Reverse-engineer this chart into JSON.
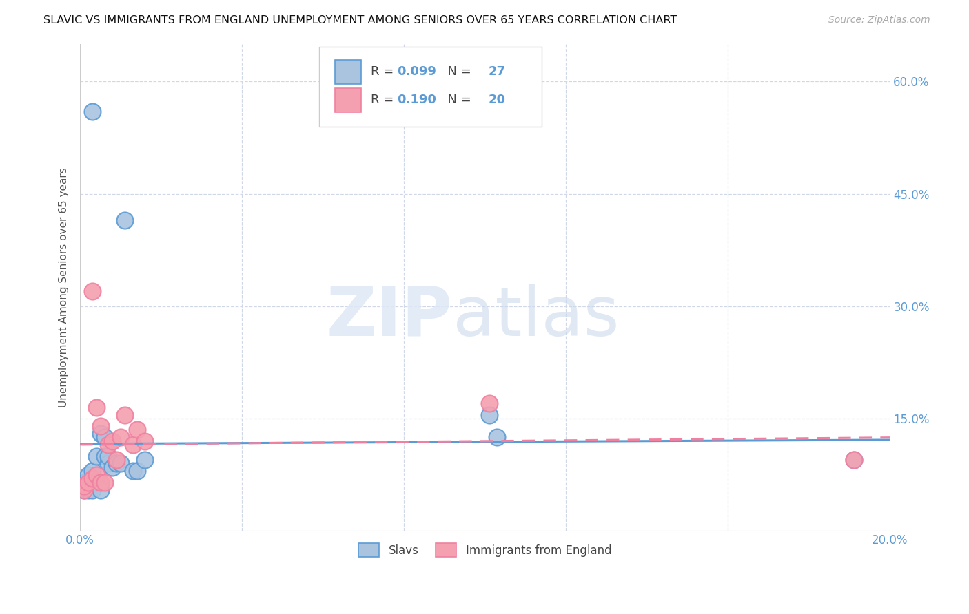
{
  "title": "SLAVIC VS IMMIGRANTS FROM ENGLAND UNEMPLOYMENT AMONG SENIORS OVER 65 YEARS CORRELATION CHART",
  "source": "Source: ZipAtlas.com",
  "ylabel": "Unemployment Among Seniors over 65 years",
  "xlim": [
    0.0,
    0.2
  ],
  "ylim": [
    0.0,
    0.65
  ],
  "slavs_x": [
    0.001,
    0.001,
    0.002,
    0.002,
    0.002,
    0.003,
    0.003,
    0.003,
    0.004,
    0.004,
    0.005,
    0.005,
    0.006,
    0.006,
    0.007,
    0.007,
    0.008,
    0.009,
    0.01,
    0.011,
    0.013,
    0.014,
    0.016,
    0.003,
    0.101,
    0.103,
    0.191
  ],
  "slavs_y": [
    0.055,
    0.065,
    0.065,
    0.075,
    0.055,
    0.055,
    0.07,
    0.08,
    0.065,
    0.1,
    0.055,
    0.13,
    0.1,
    0.125,
    0.09,
    0.1,
    0.085,
    0.09,
    0.09,
    0.415,
    0.08,
    0.08,
    0.095,
    0.56,
    0.155,
    0.125,
    0.095
  ],
  "england_x": [
    0.001,
    0.001,
    0.002,
    0.003,
    0.003,
    0.004,
    0.004,
    0.005,
    0.005,
    0.006,
    0.007,
    0.008,
    0.009,
    0.01,
    0.011,
    0.013,
    0.014,
    0.016,
    0.101,
    0.191
  ],
  "england_y": [
    0.055,
    0.06,
    0.065,
    0.07,
    0.32,
    0.075,
    0.165,
    0.065,
    0.14,
    0.065,
    0.115,
    0.12,
    0.095,
    0.125,
    0.155,
    0.115,
    0.135,
    0.12,
    0.17,
    0.095
  ],
  "slavs_color": "#aac4e0",
  "england_color": "#f4a0b0",
  "slavs_line_color": "#5b9bd5",
  "england_line_color": "#f080a0",
  "slavs_R": "0.099",
  "slavs_N": "27",
  "england_R": "0.190",
  "england_N": "20",
  "background_color": "#ffffff",
  "grid_color": "#d0d8e8"
}
